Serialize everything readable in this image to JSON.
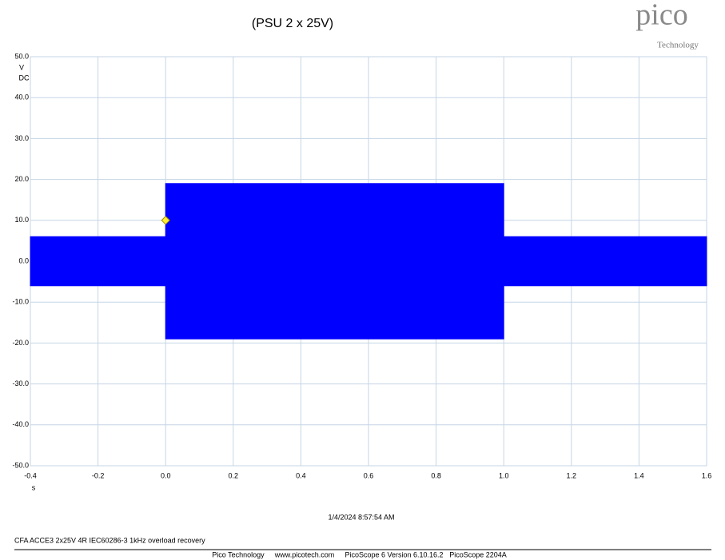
{
  "chart_data": {
    "type": "area",
    "title": "(PSU 2 x 25V)",
    "y_unit": "V",
    "y_coupling": "DC",
    "x_unit": "s",
    "timestamp": "1/4/2024 8:57:54 AM",
    "note": "CFA ACCE3 2x25V 4R IEC60286-3 1kHz overload recovery",
    "footer": [
      "Pico Technology",
      "www.picotech.com",
      "PicoScope 6 Version 6.10.16.2",
      "PicoScope 2204A"
    ],
    "logo": {
      "name": "pico",
      "sub": "Technology"
    },
    "x": [
      -0.4,
      0,
      0,
      1.0,
      1.0,
      1.6
    ],
    "series": [
      {
        "color": "#0000ff",
        "values": [
          6,
          6,
          19,
          19,
          6,
          6
        ]
      },
      {
        "color": "#0000ff",
        "values": [
          -6,
          -6,
          -19,
          -19,
          -6,
          -6
        ]
      }
    ],
    "trigger": {
      "x": 0,
      "y": 10,
      "color": "#ffee33"
    },
    "xlim": [
      -0.4,
      1.6
    ],
    "xticks": [
      -0.4,
      -0.2,
      {
        "value": 0,
        "label": "0.0"
      },
      0.2,
      0.4,
      0.6,
      0.8,
      {
        "value": 1,
        "label": "1.0"
      },
      1.2,
      1.4,
      1.6
    ],
    "ylim": [
      -50,
      50
    ],
    "yticks": [
      {
        "value": 50,
        "label": "50.0"
      },
      {
        "value": 40,
        "label": "40.0"
      },
      {
        "value": 30,
        "label": "30.0"
      },
      {
        "value": 20,
        "label": "20.0"
      },
      {
        "value": 10,
        "label": "10.0"
      },
      {
        "value": 0,
        "label": "0.0"
      },
      {
        "value": -10,
        "label": "-10.0"
      },
      {
        "value": -20,
        "label": "-20.0"
      },
      {
        "value": -30,
        "label": "-30.0"
      },
      {
        "value": -40,
        "label": "-40.0"
      },
      {
        "value": -50,
        "label": "-50.0"
      }
    ],
    "grid": true
  }
}
